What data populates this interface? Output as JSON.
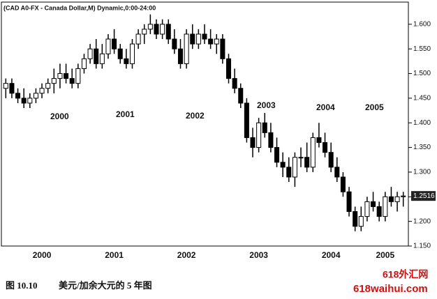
{
  "chart_data": {
    "type": "candlestick",
    "title": "(CAD A0-FX - Canada Dollar,M) Dynamic,0:00-24:00",
    "caption_number": "图 10.10",
    "caption_text": "美元/加余大元的 5 年图",
    "watermark": [
      "618外汇网",
      "618waihui.com"
    ],
    "annotations": [
      "2000",
      "2001",
      "2002",
      "2003",
      "2004",
      "2005"
    ],
    "categories": [
      null,
      null,
      null,
      null,
      null,
      null,
      "2000",
      null,
      null,
      null,
      null,
      null,
      null,
      null,
      null,
      null,
      null,
      null,
      "2001",
      null,
      null,
      null,
      null,
      null,
      null,
      null,
      null,
      null,
      null,
      null,
      "2002",
      null,
      null,
      null,
      null,
      null,
      null,
      null,
      null,
      null,
      null,
      null,
      "2003",
      null,
      null,
      null,
      null,
      null,
      null,
      null,
      null,
      null,
      null,
      null,
      "2004",
      null,
      null,
      null,
      null,
      null,
      null,
      null,
      null,
      "2005",
      null,
      null,
      null
    ],
    "open": [
      1.47,
      1.48,
      1.46,
      1.45,
      1.44,
      1.45,
      1.46,
      1.47,
      1.48,
      1.49,
      1.5,
      1.49,
      1.48,
      1.51,
      1.53,
      1.55,
      1.52,
      1.54,
      1.57,
      1.55,
      1.53,
      1.52,
      1.56,
      1.58,
      1.59,
      1.6,
      1.58,
      1.6,
      1.57,
      1.55,
      1.52,
      1.58,
      1.56,
      1.58,
      1.57,
      1.56,
      1.57,
      1.53,
      1.49,
      1.47,
      1.44,
      1.37,
      1.35,
      1.4,
      1.38,
      1.35,
      1.32,
      1.31,
      1.29,
      1.33,
      1.33,
      1.31,
      1.37,
      1.36,
      1.34,
      1.31,
      1.29,
      1.26,
      1.22,
      1.19,
      1.21,
      1.24,
      1.23,
      1.21,
      1.25,
      1.24,
      1.25
    ],
    "high": [
      1.49,
      1.49,
      1.47,
      1.47,
      1.46,
      1.47,
      1.48,
      1.49,
      1.51,
      1.52,
      1.52,
      1.51,
      1.52,
      1.54,
      1.56,
      1.57,
      1.56,
      1.58,
      1.59,
      1.56,
      1.55,
      1.57,
      1.59,
      1.6,
      1.62,
      1.61,
      1.61,
      1.61,
      1.59,
      1.57,
      1.59,
      1.6,
      1.59,
      1.6,
      1.59,
      1.58,
      1.58,
      1.54,
      1.51,
      1.48,
      1.45,
      1.39,
      1.41,
      1.42,
      1.4,
      1.37,
      1.34,
      1.33,
      1.34,
      1.35,
      1.36,
      1.38,
      1.4,
      1.38,
      1.36,
      1.33,
      1.3,
      1.27,
      1.23,
      1.23,
      1.25,
      1.26,
      1.24,
      1.26,
      1.27,
      1.26,
      1.26
    ],
    "low": [
      1.45,
      1.45,
      1.44,
      1.43,
      1.43,
      1.44,
      1.45,
      1.46,
      1.46,
      1.47,
      1.48,
      1.47,
      1.47,
      1.5,
      1.52,
      1.51,
      1.51,
      1.53,
      1.54,
      1.52,
      1.51,
      1.51,
      1.55,
      1.56,
      1.58,
      1.57,
      1.57,
      1.56,
      1.54,
      1.51,
      1.51,
      1.55,
      1.55,
      1.56,
      1.55,
      1.54,
      1.52,
      1.48,
      1.46,
      1.43,
      1.36,
      1.33,
      1.34,
      1.37,
      1.34,
      1.31,
      1.29,
      1.28,
      1.27,
      1.31,
      1.3,
      1.3,
      1.35,
      1.33,
      1.3,
      1.28,
      1.25,
      1.21,
      1.18,
      1.18,
      1.2,
      1.22,
      1.2,
      1.2,
      1.23,
      1.22,
      1.23
    ],
    "close": [
      1.48,
      1.46,
      1.45,
      1.44,
      1.45,
      1.46,
      1.47,
      1.48,
      1.49,
      1.5,
      1.49,
      1.48,
      1.51,
      1.53,
      1.55,
      1.52,
      1.54,
      1.57,
      1.55,
      1.53,
      1.52,
      1.56,
      1.58,
      1.59,
      1.6,
      1.58,
      1.6,
      1.57,
      1.55,
      1.52,
      1.58,
      1.56,
      1.58,
      1.57,
      1.56,
      1.57,
      1.53,
      1.49,
      1.47,
      1.44,
      1.37,
      1.35,
      1.4,
      1.38,
      1.35,
      1.32,
      1.31,
      1.29,
      1.33,
      1.33,
      1.31,
      1.37,
      1.36,
      1.34,
      1.31,
      1.29,
      1.26,
      1.22,
      1.19,
      1.21,
      1.24,
      1.23,
      1.21,
      1.25,
      1.24,
      1.25,
      1.2516
    ],
    "up_color": "#ffffff",
    "down_color": "#000000",
    "ylim": [
      1.15,
      1.645
    ],
    "yticks": [
      {
        "value": 1.15,
        "label": "1.150"
      },
      {
        "value": 1.2,
        "label": "1.200"
      },
      {
        "value": 1.25,
        "label": "1.250"
      },
      {
        "value": 1.3,
        "label": "1.300"
      },
      {
        "value": 1.35,
        "label": "1.350"
      },
      {
        "value": 1.4,
        "label": "1.400"
      },
      {
        "value": 1.45,
        "label": "1.450"
      },
      {
        "value": 1.5,
        "label": "1.500"
      },
      {
        "value": 1.55,
        "label": "1.550"
      },
      {
        "value": 1.6,
        "label": "1.600"
      }
    ],
    "grid": false
  }
}
